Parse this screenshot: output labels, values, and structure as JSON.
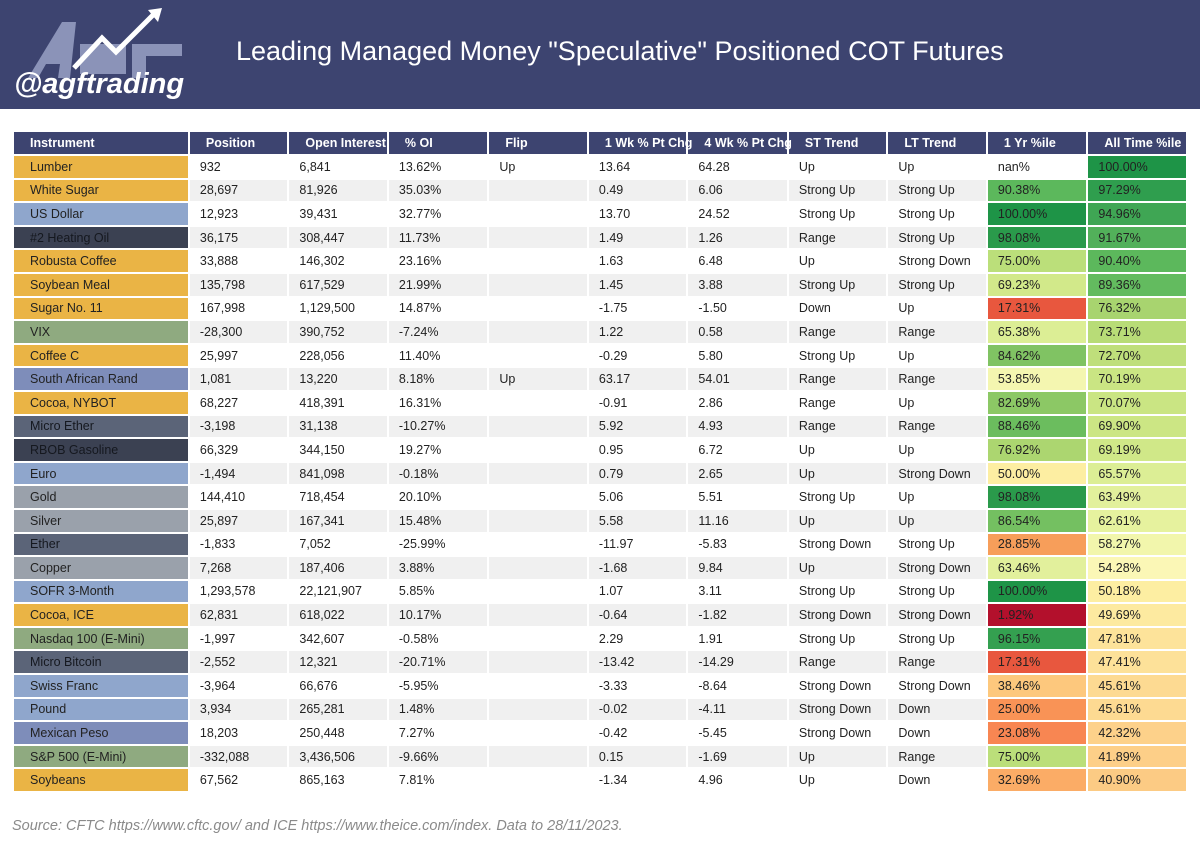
{
  "header": {
    "handle": "@agftrading",
    "title": "Leading Managed Money \"Speculative\" Positioned COT Futures"
  },
  "colors": {
    "header_bg": "#3d4470"
  },
  "chart_data": {
    "type": "table",
    "columns": [
      "Instrument",
      "Position",
      "Open Interest",
      "% OI",
      "Flip",
      "1 Wk % Pt Chg",
      "4 Wk % Pt Chg",
      "ST Trend",
      "LT Trend",
      "1 Yr %ile",
      "All Time %ile"
    ],
    "rows": [
      {
        "instrument": "Lumber",
        "position": "932",
        "open_interest": "6,841",
        "pct_oi": "13.62%",
        "flip": "Up",
        "wk1": "13.64",
        "wk4": "64.28",
        "st": "Up",
        "lt": "Up",
        "yr1": "nan%",
        "all": "100.00%",
        "color": "#eab445",
        "yr1_color": "#ffffff",
        "all_color": "#1e9447"
      },
      {
        "instrument": "White Sugar",
        "position": "28,697",
        "open_interest": "81,926",
        "pct_oi": "35.03%",
        "flip": "",
        "wk1": "0.49",
        "wk4": "6.06",
        "st": "Strong Up",
        "lt": "Strong Up",
        "yr1": "90.38%",
        "all": "97.29%",
        "color": "#eab445",
        "yr1_color": "#5cb85c",
        "all_color": "#2f9e4e"
      },
      {
        "instrument": "US Dollar",
        "position": "12,923",
        "open_interest": "39,431",
        "pct_oi": "32.77%",
        "flip": "",
        "wk1": "13.70",
        "wk4": "24.52",
        "st": "Strong Up",
        "lt": "Strong Up",
        "yr1": "100.00%",
        "all": "94.96%",
        "color": "#8fa6cc",
        "yr1_color": "#1e9447",
        "all_color": "#3fa654"
      },
      {
        "instrument": "#2 Heating Oil",
        "position": "36,175",
        "open_interest": "308,447",
        "pct_oi": "11.73%",
        "flip": "",
        "wk1": "1.49",
        "wk4": "1.26",
        "st": "Range",
        "lt": "Strong Up",
        "yr1": "98.08%",
        "all": "91.67%",
        "color": "#3b4152",
        "yr1_color": "#2a9a4b",
        "all_color": "#52b05a"
      },
      {
        "instrument": "Robusta Coffee",
        "position": "33,888",
        "open_interest": "146,302",
        "pct_oi": "23.16%",
        "flip": "",
        "wk1": "1.63",
        "wk4": "6.48",
        "st": "Up",
        "lt": "Strong Down",
        "yr1": "75.00%",
        "all": "90.40%",
        "color": "#eab445",
        "yr1_color": "#bbdf7a",
        "all_color": "#5cb85c"
      },
      {
        "instrument": "Soybean Meal",
        "position": "135,798",
        "open_interest": "617,529",
        "pct_oi": "21.99%",
        "flip": "",
        "wk1": "1.45",
        "wk4": "3.88",
        "st": "Strong Up",
        "lt": "Strong Up",
        "yr1": "69.23%",
        "all": "89.36%",
        "color": "#eab445",
        "yr1_color": "#d2e98a",
        "all_color": "#63bb5f"
      },
      {
        "instrument": "Sugar No. 11",
        "position": "167,998",
        "open_interest": "1,129,500",
        "pct_oi": "14.87%",
        "flip": "",
        "wk1": "-1.75",
        "wk4": "-1.50",
        "st": "Down",
        "lt": "Up",
        "yr1": "17.31%",
        "all": "76.32%",
        "color": "#eab445",
        "yr1_color": "#e8573e",
        "all_color": "#a8d46f"
      },
      {
        "instrument": "VIX",
        "position": "-28,300",
        "open_interest": "390,752",
        "pct_oi": "-7.24%",
        "flip": "",
        "wk1": "1.22",
        "wk4": "0.58",
        "st": "Range",
        "lt": "Range",
        "yr1": "65.38%",
        "all": "73.71%",
        "color": "#8faa80",
        "yr1_color": "#dcee95",
        "all_color": "#b8dc77"
      },
      {
        "instrument": "Coffee C",
        "position": "25,997",
        "open_interest": "228,056",
        "pct_oi": "11.40%",
        "flip": "",
        "wk1": "-0.29",
        "wk4": "5.80",
        "st": "Strong Up",
        "lt": "Up",
        "yr1": "84.62%",
        "all": "72.70%",
        "color": "#eab445",
        "yr1_color": "#80c363",
        "all_color": "#bfdf7b"
      },
      {
        "instrument": "South African Rand",
        "position": "1,081",
        "open_interest": "13,220",
        "pct_oi": "8.18%",
        "flip": "Up",
        "wk1": "63.17",
        "wk4": "54.01",
        "st": "Range",
        "lt": "Range",
        "yr1": "53.85%",
        "all": "70.19%",
        "color": "#7e8dba",
        "yr1_color": "#f4f6b0",
        "all_color": "#cae583"
      },
      {
        "instrument": "Cocoa, NYBOT",
        "position": "68,227",
        "open_interest": "418,391",
        "pct_oi": "16.31%",
        "flip": "",
        "wk1": "-0.91",
        "wk4": "2.86",
        "st": "Range",
        "lt": "Up",
        "yr1": "82.69%",
        "all": "70.07%",
        "color": "#eab445",
        "yr1_color": "#8cc865",
        "all_color": "#cae583"
      },
      {
        "instrument": "Micro Ether",
        "position": "-3,198",
        "open_interest": "31,138",
        "pct_oi": "-10.27%",
        "flip": "",
        "wk1": "5.92",
        "wk4": "4.93",
        "st": "Range",
        "lt": "Range",
        "yr1": "88.46%",
        "all": "69.90%",
        "color": "#5b6478",
        "yr1_color": "#6bbd5e",
        "all_color": "#cce684"
      },
      {
        "instrument": "RBOB Gasoline",
        "position": "66,329",
        "open_interest": "344,150",
        "pct_oi": "19.27%",
        "flip": "",
        "wk1": "0.95",
        "wk4": "6.72",
        "st": "Up",
        "lt": "Up",
        "yr1": "76.92%",
        "all": "69.19%",
        "color": "#3b4152",
        "yr1_color": "#acd670",
        "all_color": "#d0e888"
      },
      {
        "instrument": "Euro",
        "position": "-1,494",
        "open_interest": "841,098",
        "pct_oi": "-0.18%",
        "flip": "",
        "wk1": "0.79",
        "wk4": "2.65",
        "st": "Up",
        "lt": "Strong Down",
        "yr1": "50.00%",
        "all": "65.57%",
        "color": "#8fa6cc",
        "yr1_color": "#fdeea2",
        "all_color": "#dcee95"
      },
      {
        "instrument": "Gold",
        "position": "144,410",
        "open_interest": "718,454",
        "pct_oi": "20.10%",
        "flip": "",
        "wk1": "5.06",
        "wk4": "5.51",
        "st": "Strong Up",
        "lt": "Up",
        "yr1": "98.08%",
        "all": "63.49%",
        "color": "#9aa1ab",
        "yr1_color": "#2a9a4b",
        "all_color": "#e2f09c"
      },
      {
        "instrument": "Silver",
        "position": "25,897",
        "open_interest": "167,341",
        "pct_oi": "15.48%",
        "flip": "",
        "wk1": "5.58",
        "wk4": "11.16",
        "st": "Up",
        "lt": "Up",
        "yr1": "86.54%",
        "all": "62.61%",
        "color": "#9aa1ab",
        "yr1_color": "#74c061",
        "all_color": "#e6f29e"
      },
      {
        "instrument": "Ether",
        "position": "-1,833",
        "open_interest": "7,052",
        "pct_oi": "-25.99%",
        "flip": "",
        "wk1": "-11.97",
        "wk4": "-5.83",
        "st": "Strong Down",
        "lt": "Strong Up",
        "yr1": "28.85%",
        "all": "58.27%",
        "color": "#5b6478",
        "yr1_color": "#f79e5a",
        "all_color": "#f2f6ac"
      },
      {
        "instrument": "Copper",
        "position": "7,268",
        "open_interest": "187,406",
        "pct_oi": "3.88%",
        "flip": "",
        "wk1": "-1.68",
        "wk4": "9.84",
        "st": "Up",
        "lt": "Strong Down",
        "yr1": "63.46%",
        "all": "54.28%",
        "color": "#9aa1ab",
        "yr1_color": "#e2f09c",
        "all_color": "#fbf7b6"
      },
      {
        "instrument": "SOFR 3-Month",
        "position": "1,293,578",
        "open_interest": "22,121,907",
        "pct_oi": "5.85%",
        "flip": "",
        "wk1": "1.07",
        "wk4": "3.11",
        "st": "Strong Up",
        "lt": "Strong Up",
        "yr1": "100.00%",
        "all": "50.18%",
        "color": "#8fa6cc",
        "yr1_color": "#1e9447",
        "all_color": "#fdeea2"
      },
      {
        "instrument": "Cocoa, ICE",
        "position": "62,831",
        "open_interest": "618,022",
        "pct_oi": "10.17%",
        "flip": "",
        "wk1": "-0.64",
        "wk4": "-1.82",
        "st": "Strong Down",
        "lt": "Strong Down",
        "yr1": "1.92%",
        "all": "49.69%",
        "color": "#eab445",
        "yr1_color": "#b3102c",
        "all_color": "#fdeaa0"
      },
      {
        "instrument": "Nasdaq 100 (E-Mini)",
        "position": "-1,997",
        "open_interest": "342,607",
        "pct_oi": "-0.58%",
        "flip": "",
        "wk1": "2.29",
        "wk4": "1.91",
        "st": "Strong Up",
        "lt": "Strong Up",
        "yr1": "96.15%",
        "all": "47.81%",
        "color": "#8faa80",
        "yr1_color": "#34a050",
        "all_color": "#fde39a"
      },
      {
        "instrument": "Micro Bitcoin",
        "position": "-2,552",
        "open_interest": "12,321",
        "pct_oi": "-20.71%",
        "flip": "",
        "wk1": "-13.42",
        "wk4": "-14.29",
        "st": "Range",
        "lt": "Range",
        "yr1": "17.31%",
        "all": "47.41%",
        "color": "#5b6478",
        "yr1_color": "#e8573e",
        "all_color": "#fde199"
      },
      {
        "instrument": "Swiss Franc",
        "position": "-3,964",
        "open_interest": "66,676",
        "pct_oi": "-5.95%",
        "flip": "",
        "wk1": "-3.33",
        "wk4": "-8.64",
        "st": "Strong Down",
        "lt": "Strong Down",
        "yr1": "38.46%",
        "all": "45.61%",
        "color": "#8fa6cc",
        "yr1_color": "#fdc87d",
        "all_color": "#fdda92"
      },
      {
        "instrument": "Pound",
        "position": "3,934",
        "open_interest": "265,281",
        "pct_oi": "1.48%",
        "flip": "",
        "wk1": "-0.02",
        "wk4": "-4.11",
        "st": "Strong Down",
        "lt": "Down",
        "yr1": "25.00%",
        "all": "45.61%",
        "color": "#8fa6cc",
        "yr1_color": "#f99356",
        "all_color": "#fdda92"
      },
      {
        "instrument": "Mexican Peso",
        "position": "18,203",
        "open_interest": "250,448",
        "pct_oi": "7.27%",
        "flip": "",
        "wk1": "-0.42",
        "wk4": "-5.45",
        "st": "Strong Down",
        "lt": "Down",
        "yr1": "23.08%",
        "all": "42.32%",
        "color": "#7e8dba",
        "yr1_color": "#f88652",
        "all_color": "#fdd18a"
      },
      {
        "instrument": "S&P 500 (E-Mini)",
        "position": "-332,088",
        "open_interest": "3,436,506",
        "pct_oi": "-9.66%",
        "flip": "",
        "wk1": "0.15",
        "wk4": "-1.69",
        "st": "Up",
        "lt": "Range",
        "yr1": "75.00%",
        "all": "41.89%",
        "color": "#8faa80",
        "yr1_color": "#bbdf7a",
        "all_color": "#fdcf88"
      },
      {
        "instrument": "Soybeans",
        "position": "67,562",
        "open_interest": "865,163",
        "pct_oi": "7.81%",
        "flip": "",
        "wk1": "-1.34",
        "wk4": "4.96",
        "st": "Up",
        "lt": "Down",
        "yr1": "32.69%",
        "all": "40.90%",
        "color": "#eab445",
        "yr1_color": "#fbac66",
        "all_color": "#fccb84"
      }
    ]
  },
  "source": "Source: CFTC https://www.cftc.gov/ and ICE https://www.theice.com/index.  Data to 28/11/2023."
}
